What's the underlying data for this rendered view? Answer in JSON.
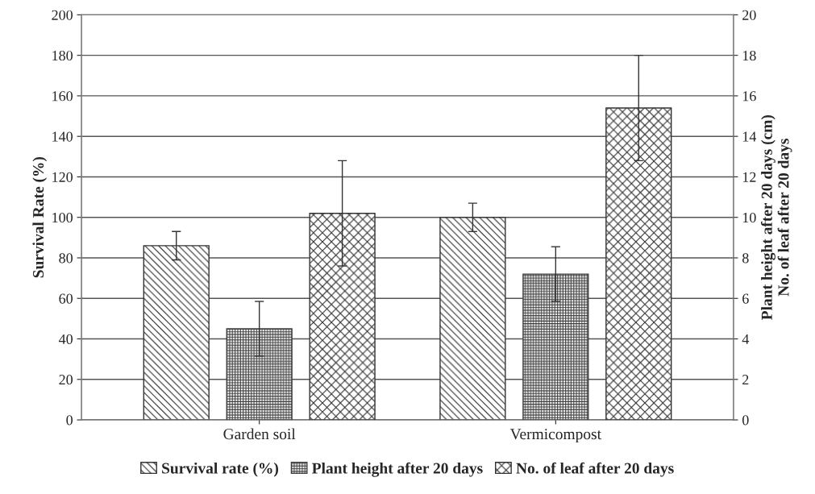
{
  "chart_data": {
    "type": "bar",
    "categories": [
      "Garden soil",
      "Vermicompost"
    ],
    "ylabel": "Survival Rate (%)",
    "y2label": "Plant height after 20 days (cm)\nNo. of leaf after 20 days",
    "series": [
      {
        "name": "Survival rate (%)",
        "color": "#333333",
        "values": [
          86,
          100
        ],
        "errors": [
          7,
          7
        ]
      },
      {
        "name": "Plant height after 20 days",
        "color": "#404040",
        "values": [
          4.5,
          7.2
        ],
        "errors": [
          1.35,
          1.35
        ],
        "axis": "y2"
      },
      {
        "name": "No. of leaf after 20 days",
        "color": "#333333",
        "values": [
          10.2,
          15.4
        ],
        "errors": [
          2.6,
          2.6
        ],
        "axis": "y2"
      }
    ],
    "ylim": [
      0,
      200
    ],
    "yticks": [
      0,
      20,
      40,
      60,
      80,
      100,
      120,
      140,
      160,
      180,
      200
    ],
    "y2lim": [
      0,
      20
    ],
    "y2ticks": [
      0,
      2,
      4,
      6,
      8,
      10,
      12,
      14,
      16,
      18,
      20
    ],
    "grid": "y",
    "legend": "bottom"
  }
}
